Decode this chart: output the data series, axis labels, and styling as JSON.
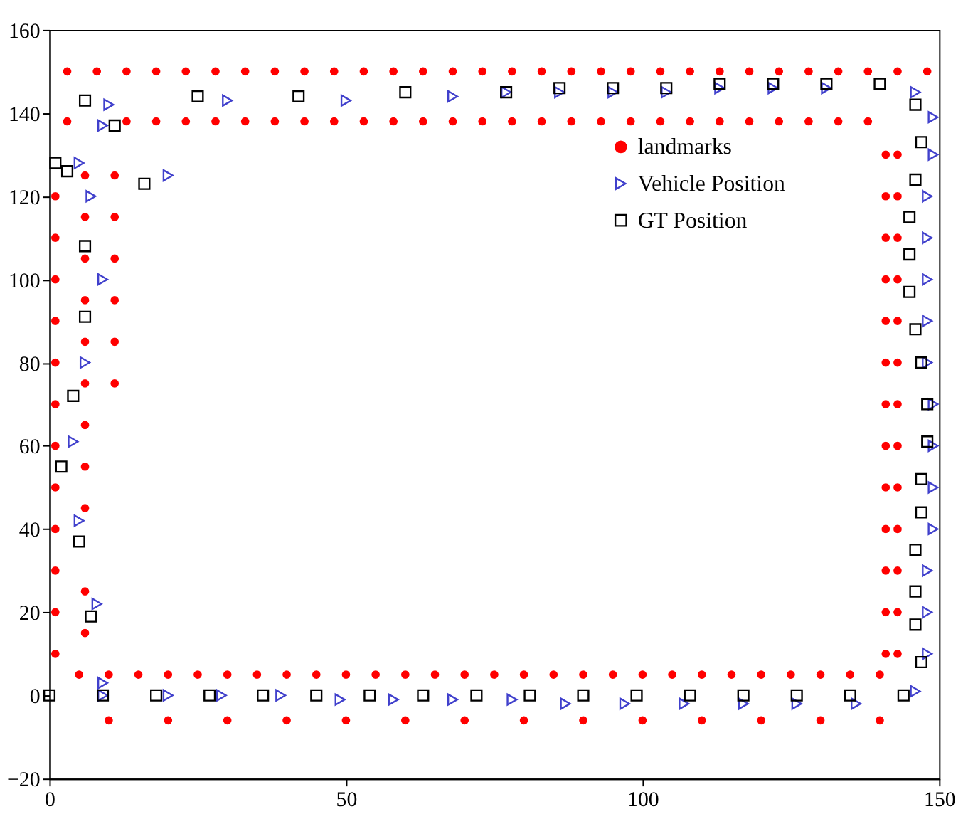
{
  "chart_data": {
    "type": "scatter",
    "xlim": [
      0,
      150
    ],
    "ylim": [
      -20,
      160
    ],
    "xticks": [
      0,
      50,
      100,
      150
    ],
    "yticks": [
      -20,
      0,
      20,
      40,
      60,
      80,
      100,
      120,
      140,
      160
    ],
    "grid": false,
    "legend": "top right",
    "series": [
      {
        "name": "landmarks",
        "color": "#ff0000",
        "marker": "circle",
        "x": [
          3,
          8,
          13,
          18,
          23,
          28,
          33,
          38,
          43,
          48,
          53,
          58,
          63,
          68,
          73,
          78,
          83,
          88,
          93,
          98,
          103,
          108,
          113,
          118,
          123,
          128,
          133,
          138,
          143,
          148,
          3,
          13,
          18,
          23,
          28,
          33,
          38,
          43,
          48,
          53,
          58,
          63,
          68,
          73,
          78,
          83,
          88,
          93,
          98,
          103,
          108,
          113,
          118,
          123,
          128,
          133,
          138,
          1,
          1,
          1,
          1,
          1,
          1,
          1,
          1,
          1,
          1,
          1,
          1,
          6,
          6,
          6,
          6,
          6,
          6,
          6,
          6,
          6,
          6,
          6,
          11,
          11,
          11,
          11,
          11,
          11,
          5,
          10,
          15,
          20,
          25,
          30,
          35,
          40,
          45,
          50,
          55,
          60,
          65,
          70,
          75,
          80,
          85,
          90,
          95,
          100,
          105,
          110,
          115,
          120,
          125,
          130,
          135,
          140,
          10,
          20,
          30,
          40,
          50,
          60,
          70,
          80,
          90,
          100,
          110,
          120,
          130,
          140,
          141,
          141,
          141,
          141,
          141,
          141,
          141,
          141,
          141,
          141,
          141,
          141,
          141,
          143,
          143,
          143,
          143,
          143,
          143,
          143,
          143,
          143,
          143,
          143,
          143,
          143
        ],
        "values": [
          150,
          150,
          150,
          150,
          150,
          150,
          150,
          150,
          150,
          150,
          150,
          150,
          150,
          150,
          150,
          150,
          150,
          150,
          150,
          150,
          150,
          150,
          150,
          150,
          150,
          150,
          150,
          150,
          150,
          150,
          138,
          138,
          138,
          138,
          138,
          138,
          138,
          138,
          138,
          138,
          138,
          138,
          138,
          138,
          138,
          138,
          138,
          138,
          138,
          138,
          138,
          138,
          138,
          138,
          138,
          138,
          138,
          10,
          20,
          30,
          40,
          50,
          60,
          70,
          80,
          90,
          100,
          110,
          120,
          15,
          25,
          45,
          55,
          65,
          75,
          85,
          95,
          105,
          115,
          125,
          75,
          85,
          95,
          105,
          115,
          125,
          5,
          5,
          5,
          5,
          5,
          5,
          5,
          5,
          5,
          5,
          5,
          5,
          5,
          5,
          5,
          5,
          5,
          5,
          5,
          5,
          5,
          5,
          5,
          5,
          5,
          5,
          5,
          5,
          -6,
          -6,
          -6,
          -6,
          -6,
          -6,
          -6,
          -6,
          -6,
          -6,
          -6,
          -6,
          -6,
          -6,
          10,
          20,
          30,
          40,
          50,
          60,
          70,
          80,
          90,
          100,
          110,
          120,
          130,
          10,
          20,
          30,
          40,
          50,
          60,
          70,
          80,
          90,
          100,
          110,
          120,
          130
        ]
      },
      {
        "name": "Vehicle Position",
        "color": "#4040cc",
        "marker": "triangle",
        "x": [
          9,
          20,
          29,
          39,
          49,
          58,
          68,
          78,
          87,
          97,
          107,
          117,
          126,
          136,
          146,
          148,
          148,
          148,
          149,
          149,
          149,
          149,
          148,
          148,
          148,
          148,
          148,
          149,
          149,
          146,
          131,
          122,
          113,
          104,
          95,
          86,
          77,
          68,
          50,
          30,
          10,
          9,
          20,
          5,
          7,
          9,
          6,
          4,
          5,
          8,
          9
        ],
        "values": [
          0,
          0,
          0,
          0,
          -1,
          -1,
          -1,
          -1,
          -2,
          -2,
          -2,
          -2,
          -2,
          -2,
          1,
          10,
          20,
          30,
          40,
          50,
          60,
          70,
          80,
          90,
          100,
          110,
          120,
          130,
          139,
          145,
          146,
          146,
          146,
          145,
          145,
          145,
          145,
          144,
          143,
          143,
          142,
          137,
          125,
          128,
          120,
          100,
          80,
          61,
          42,
          22,
          3
        ]
      },
      {
        "name": "GT Position",
        "color": "#000000",
        "marker": "square",
        "x": [
          0,
          9,
          18,
          27,
          36,
          45,
          54,
          63,
          72,
          81,
          90,
          99,
          108,
          117,
          126,
          135,
          144,
          147,
          146,
          146,
          146,
          147,
          147,
          148,
          148,
          147,
          146,
          145,
          145,
          145,
          146,
          147,
          146,
          140,
          131,
          122,
          113,
          104,
          95,
          86,
          77,
          60,
          42,
          25,
          11,
          6,
          1,
          3,
          16,
          6,
          6,
          4,
          2,
          5,
          7
        ],
        "values": [
          0,
          0,
          0,
          0,
          0,
          0,
          0,
          0,
          0,
          0,
          0,
          0,
          0,
          0,
          0,
          0,
          0,
          8,
          17,
          25,
          35,
          44,
          52,
          61,
          70,
          80,
          88,
          97,
          106,
          115,
          124,
          133,
          142,
          147,
          147,
          147,
          147,
          146,
          146,
          146,
          145,
          145,
          144,
          144,
          137,
          143,
          128,
          126,
          123,
          108,
          91,
          72,
          55,
          37,
          19
        ]
      }
    ]
  }
}
